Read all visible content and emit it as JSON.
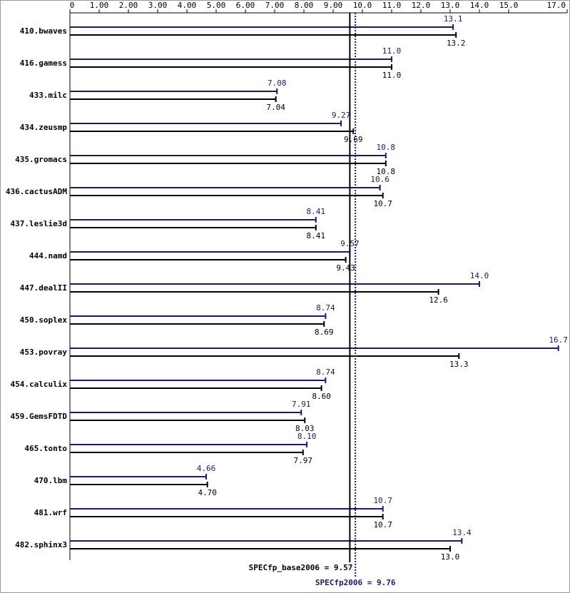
{
  "chart_data": {
    "type": "bar",
    "orientation": "horizontal",
    "categories": [
      "410.bwaves",
      "416.gamess",
      "433.milc",
      "434.zeusmp",
      "435.gromacs",
      "436.cactusADM",
      "437.leslie3d",
      "444.namd",
      "447.dealII",
      "450.soplex",
      "453.povray",
      "454.calculix",
      "459.GemsFDTD",
      "465.tonto",
      "470.lbm",
      "481.wrf",
      "482.sphinx3"
    ],
    "series": [
      {
        "color": "#191970",
        "values": [
          13.1,
          11.0,
          7.08,
          9.27,
          10.8,
          10.6,
          8.41,
          9.57,
          14.0,
          8.74,
          16.7,
          8.74,
          7.91,
          8.1,
          4.66,
          10.7,
          13.4
        ],
        "value_labels": [
          "13.1",
          "11.0",
          "7.08",
          "9.27",
          "10.8",
          "10.6",
          "8.41",
          "9.57",
          "14.0",
          "8.74",
          "16.7",
          "8.74",
          "7.91",
          "8.10",
          "4.66",
          "10.7",
          "13.4"
        ]
      },
      {
        "color": "#000000",
        "values": [
          13.2,
          11.0,
          7.04,
          9.69,
          10.8,
          10.7,
          8.41,
          9.43,
          12.6,
          8.69,
          13.3,
          8.6,
          8.03,
          7.97,
          4.7,
          10.7,
          13.0
        ],
        "value_labels": [
          "13.2",
          "11.0",
          "7.04",
          "9.69",
          "10.8",
          "10.7",
          "8.41",
          "9.43",
          "12.6",
          "8.69",
          "13.3",
          "8.60",
          "8.03",
          "7.97",
          "4.70",
          "10.7",
          "13.0"
        ]
      }
    ],
    "xlim": [
      0,
      17
    ],
    "xticks": [
      0,
      {
        "value": 1,
        "label": "1.00"
      },
      {
        "value": 2,
        "label": "2.00"
      },
      {
        "value": 3,
        "label": "3.00"
      },
      {
        "value": 4,
        "label": "4.00"
      },
      {
        "value": 5,
        "label": "5.00"
      },
      {
        "value": 6,
        "label": "6.00"
      },
      {
        "value": 7,
        "label": "7.00"
      },
      {
        "value": 8,
        "label": "8.00"
      },
      {
        "value": 9,
        "label": "9.00"
      },
      {
        "value": 10,
        "label": "10.0"
      },
      {
        "value": 11,
        "label": "11.0"
      },
      {
        "value": 12,
        "label": "12.0"
      },
      {
        "value": 13,
        "label": "13.0"
      },
      {
        "value": 14,
        "label": "14.0"
      },
      {
        "value": 15,
        "label": "15.0"
      },
      {
        "value": 17,
        "label": "17.0"
      }
    ],
    "reference_lines": [
      {
        "value": 9.57,
        "label": "SPECfp_base2006 = 9.57",
        "color": "#000000",
        "style": "solid"
      },
      {
        "value": 9.76,
        "label": "SPECfp2006 = 9.76",
        "color": "#191970",
        "style": "dotted"
      }
    ]
  }
}
